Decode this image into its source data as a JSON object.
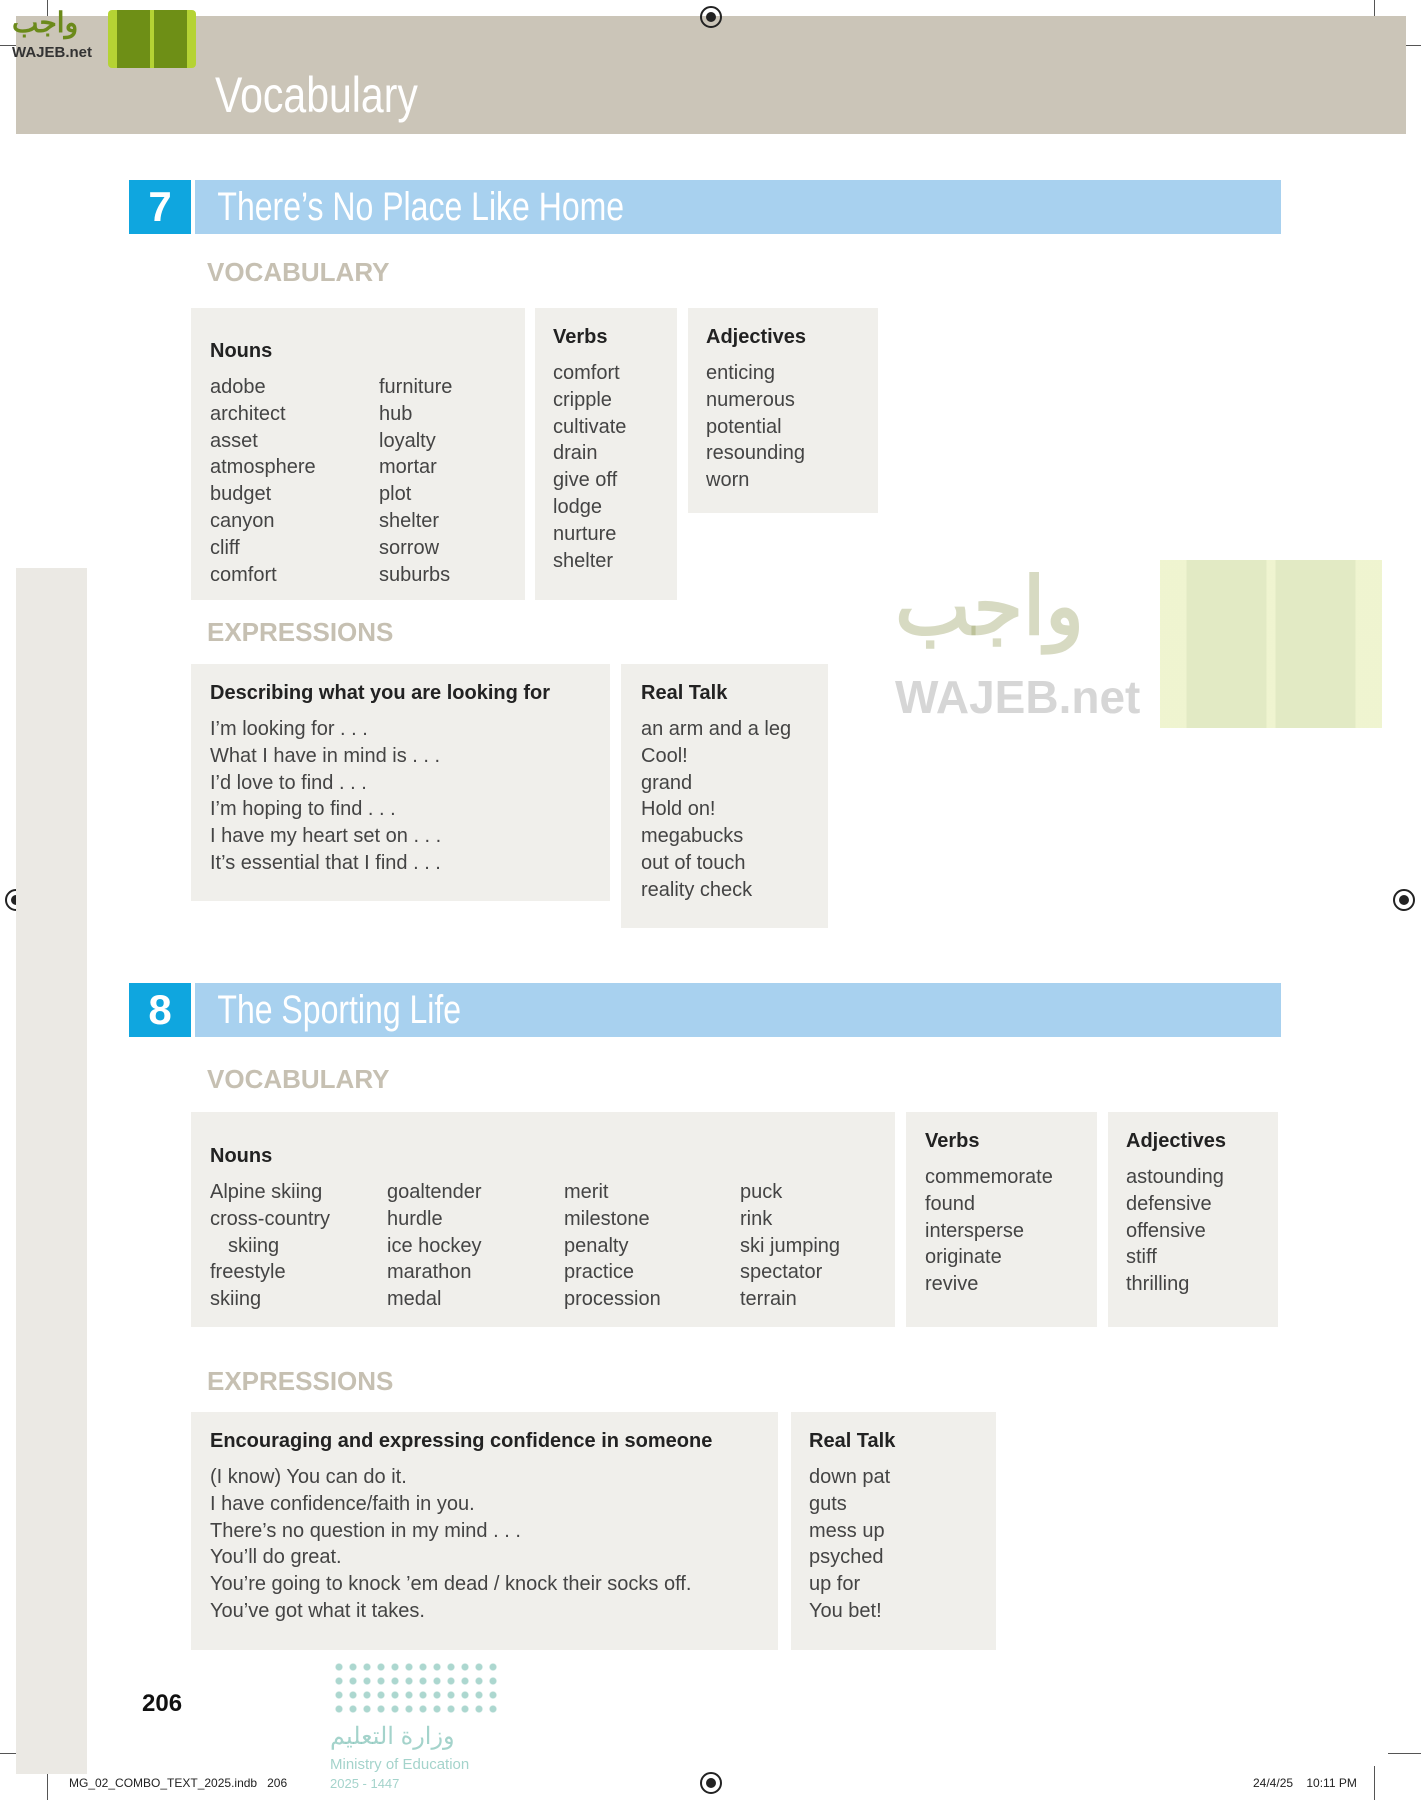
{
  "header": {
    "title": "Vocabulary"
  },
  "logo": {
    "arabic": "واجب",
    "latin": "WAJEB.net"
  },
  "units": [
    {
      "number": "7",
      "title": "There’s No Place Like Home",
      "vocabulary_label": "VOCABULARY",
      "nouns": {
        "heading": "Nouns",
        "columns": [
          [
            "adobe",
            "architect",
            "asset",
            "atmosphere",
            "budget",
            "canyon",
            "cliff",
            "comfort"
          ],
          [
            "furniture",
            "hub",
            "loyalty",
            "mortar",
            "plot",
            "shelter",
            "sorrow",
            "suburbs"
          ]
        ]
      },
      "verbs": {
        "heading": "Verbs",
        "items": [
          "comfort",
          "cripple",
          "cultivate",
          "drain",
          "give off",
          "lodge",
          "nurture",
          "shelter"
        ]
      },
      "adjectives": {
        "heading": "Adjectives",
        "items": [
          "enticing",
          "numerous",
          "potential",
          "resounding",
          "worn"
        ]
      },
      "expressions_label": "EXPRESSIONS",
      "expressions": {
        "heading": "Describing what you are looking for",
        "items": [
          "I’m looking for . . .",
          "What I have in mind is . . .",
          "I’d love to find . . .",
          "I’m hoping to find . . .",
          "I have my heart set on . . .",
          "It’s essential that I find . . ."
        ]
      },
      "real_talk": {
        "heading": "Real Talk",
        "items": [
          "an arm and a leg",
          "Cool!",
          "grand",
          "Hold on!",
          "megabucks",
          "out of touch",
          "reality check"
        ]
      }
    },
    {
      "number": "8",
      "title": "The Sporting Life",
      "vocabulary_label": "VOCABULARY",
      "nouns": {
        "heading": "Nouns",
        "columns": [
          [
            "Alpine skiing",
            "cross-country",
            "skiing",
            "freestyle",
            "skiing"
          ],
          [
            "goaltender",
            "hurdle",
            "ice hockey",
            "marathon",
            "medal"
          ],
          [
            "merit",
            "milestone",
            "penalty",
            "practice",
            "procession"
          ],
          [
            "puck",
            "rink",
            "ski jumping",
            "spectator",
            "terrain"
          ]
        ]
      },
      "verbs": {
        "heading": "Verbs",
        "items": [
          "commemorate",
          "found",
          "intersperse",
          "originate",
          "revive"
        ]
      },
      "adjectives": {
        "heading": "Adjectives",
        "items": [
          "astounding",
          "defensive",
          "offensive",
          "stiff",
          "thrilling"
        ]
      },
      "expressions_label": "EXPRESSIONS",
      "expressions": {
        "heading": "Encouraging and expressing confidence in someone",
        "items": [
          "(I know) You can do it.",
          "I have confidence/faith in you.",
          "There’s no question in my mind . . .",
          "You’ll do great.",
          "You’re going to knock ’em dead / knock their socks off.",
          "You’ve got what it takes."
        ]
      },
      "real_talk": {
        "heading": "Real Talk",
        "items": [
          "down pat",
          "guts",
          "mess up",
          "psyched",
          "up for",
          "You bet!"
        ]
      }
    }
  ],
  "ministry": {
    "arabic": "وزارة التعليم",
    "english": "Ministry of Education",
    "years": "2025 - 1447"
  },
  "page_number": "206",
  "footer": {
    "file": "MG_02_COMBO_TEXT_2025.indb   206",
    "date": "24/4/25    10:11 PM"
  },
  "colors": {
    "header": "#cbc5b8",
    "unit_number": "#0fa6df",
    "unit_bar": "#a8d1ef",
    "box": "#f0efeb",
    "section_label": "#c6c0b2"
  }
}
